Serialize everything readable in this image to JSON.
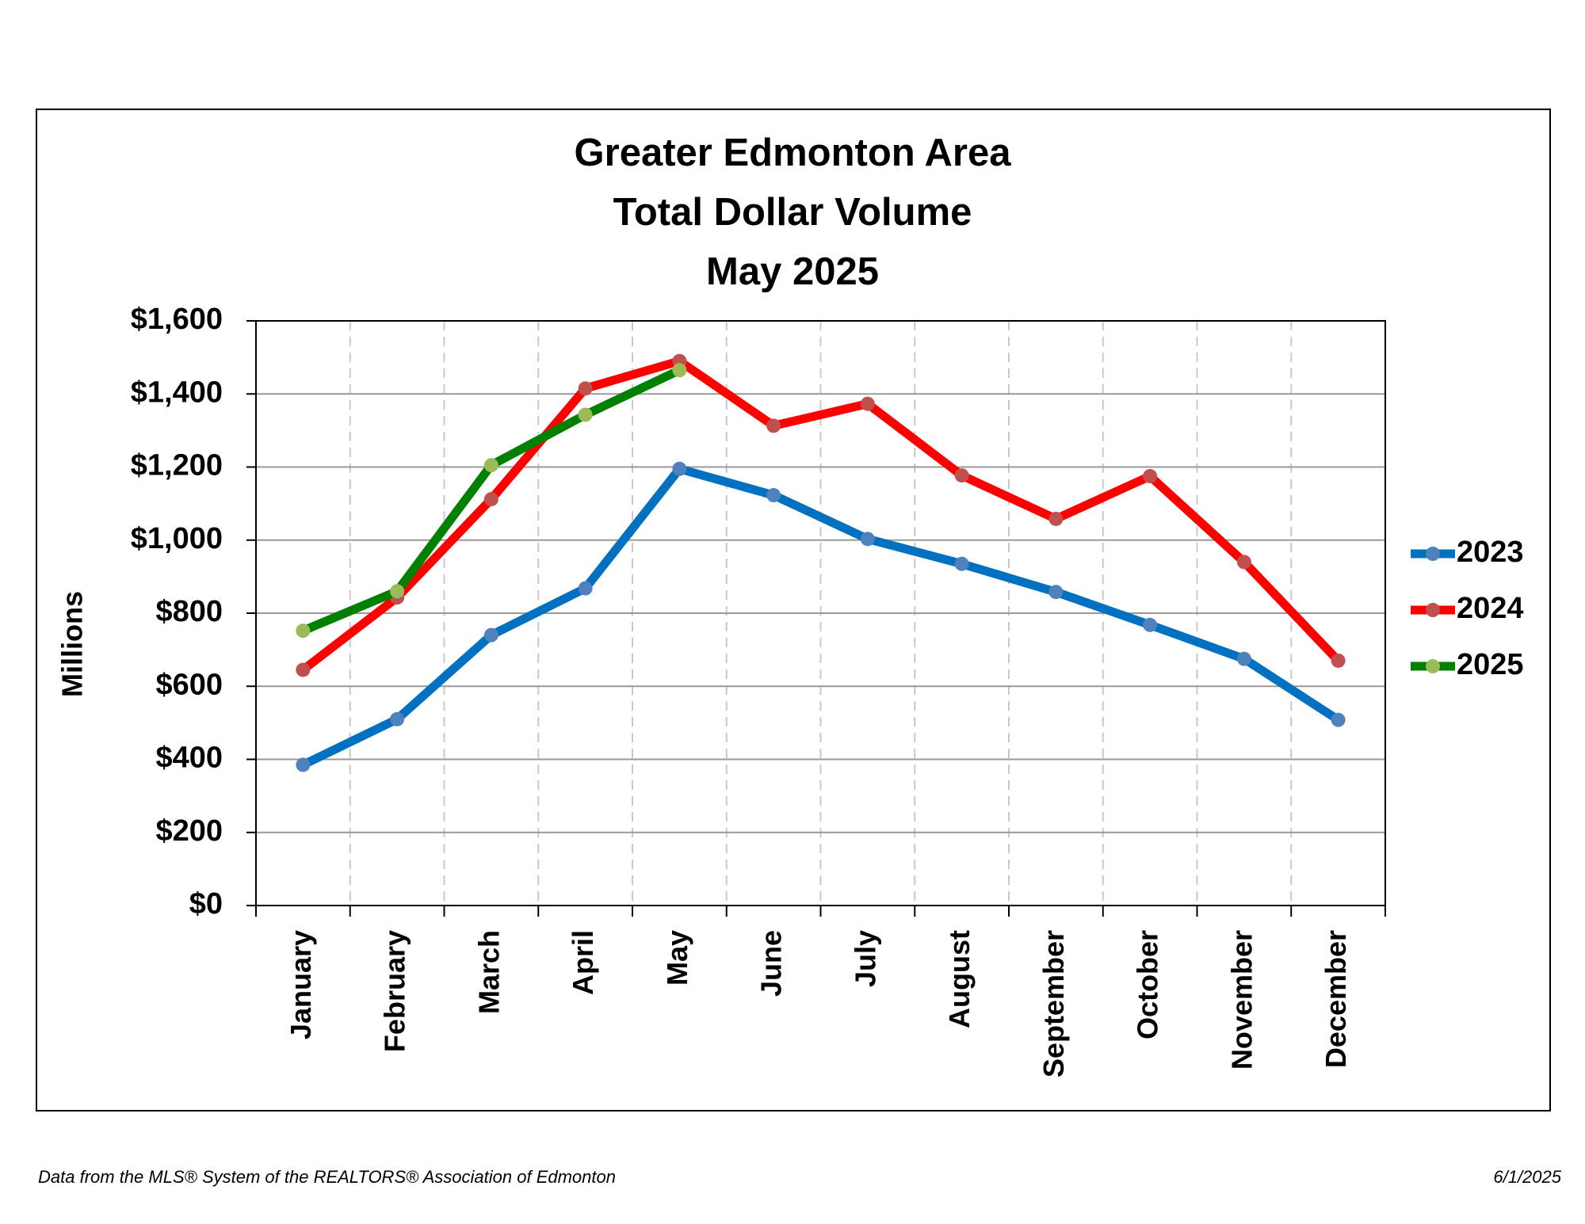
{
  "chart_data": {
    "type": "line",
    "title": [
      "Greater Edmonton Area",
      "Total Dollar Volume",
      "May 2025"
    ],
    "y_label": "Millions",
    "categories": [
      "January",
      "February",
      "March",
      "April",
      "May",
      "June",
      "July",
      "August",
      "September",
      "October",
      "November",
      "December"
    ],
    "series": [
      {
        "name": "2023",
        "color": "#0070c0",
        "marker_color": "#4f81bd",
        "values": [
          385,
          510,
          740,
          868,
          1195,
          1123,
          1003,
          935,
          858,
          768,
          675,
          508
        ]
      },
      {
        "name": "2024",
        "color": "#ff0000",
        "marker_color": "#c0504d",
        "values": [
          645,
          843,
          1112,
          1415,
          1490,
          1313,
          1373,
          1177,
          1058,
          1175,
          940,
          670
        ]
      },
      {
        "name": "2025",
        "color": "#008000",
        "marker_color": "#9bbb59",
        "values": [
          752,
          860,
          1205,
          1343,
          1465,
          null,
          null,
          null,
          null,
          null,
          null,
          null
        ]
      }
    ],
    "ylim": [
      0,
      1600
    ],
    "yticks": [
      {
        "value": 0,
        "label": "$0"
      },
      {
        "value": 200,
        "label": "$200"
      },
      {
        "value": 400,
        "label": "$400"
      },
      {
        "value": 600,
        "label": "$600"
      },
      {
        "value": 800,
        "label": "$800"
      },
      {
        "value": 1000,
        "label": "$1,000"
      },
      {
        "value": 1200,
        "label": "$1,200"
      },
      {
        "value": 1400,
        "label": "$1,400"
      },
      {
        "value": 1600,
        "label": "$1,600"
      }
    ],
    "grid": true,
    "legend": "right",
    "footer": "Data from the MLS® System of the REALTORS® Association of Edmonton",
    "date": "6/1/2025"
  }
}
